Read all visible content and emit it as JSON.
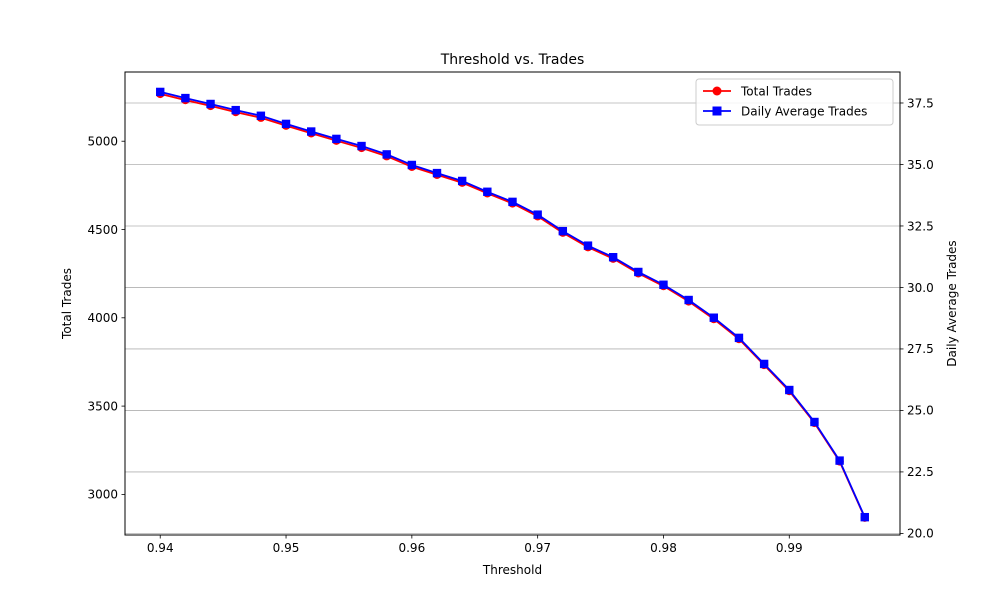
{
  "chart_data": {
    "type": "line",
    "title": "Threshold vs. Trades",
    "xlabel": "Threshold",
    "ylabel_left": "Total Trades",
    "ylabel_right": "Daily Average Trades",
    "xlim": [
      0.9372,
      0.9988
    ],
    "ylim_left": [
      2770,
      5392
    ],
    "ylim_right": [
      19.935,
      38.76
    ],
    "x_ticks": [
      0.94,
      0.95,
      0.96,
      0.97,
      0.98,
      0.99
    ],
    "x_tick_labels": [
      "0.94",
      "0.95",
      "0.96",
      "0.97",
      "0.98",
      "0.99"
    ],
    "y_left_ticks": [
      3000,
      3500,
      4000,
      4500,
      5000
    ],
    "y_left_tick_labels": [
      "3000",
      "3500",
      "4000",
      "4500",
      "5000"
    ],
    "y_right_ticks": [
      20.0,
      22.5,
      25.0,
      27.5,
      30.0,
      32.5,
      35.0,
      37.5
    ],
    "y_right_tick_labels": [
      "20.0",
      "22.5",
      "25.0",
      "27.5",
      "30.0",
      "32.5",
      "35.0",
      "37.5"
    ],
    "grid": "horizontal lines at right-axis ticks",
    "legend_position": "top-right",
    "x": [
      0.94,
      0.942,
      0.944,
      0.946,
      0.948,
      0.95,
      0.952,
      0.954,
      0.956,
      0.958,
      0.96,
      0.962,
      0.964,
      0.966,
      0.968,
      0.97,
      0.972,
      0.974,
      0.976,
      0.978,
      0.98,
      0.982,
      0.984,
      0.986,
      0.988,
      0.99,
      0.992,
      0.994,
      0.996
    ],
    "series": [
      {
        "name": "Total Trades",
        "axis": "left",
        "color": "#ff0000",
        "marker": "circle",
        "values": [
          5268,
          5233,
          5200,
          5165,
          5133,
          5088,
          5045,
          5003,
          4962,
          4915,
          4855,
          4810,
          4765,
          4705,
          4648,
          4575,
          4482,
          4400,
          4335,
          4252,
          4180,
          4093,
          3993,
          3880,
          3733,
          3585,
          3405,
          3187,
          2868
        ]
      },
      {
        "name": "Daily Average Trades",
        "axis": "right",
        "color": "#0000ff",
        "marker": "square",
        "values": [
          37.95,
          37.7,
          37.46,
          37.21,
          36.98,
          36.65,
          36.34,
          36.04,
          35.75,
          35.41,
          34.98,
          34.65,
          34.33,
          33.89,
          33.48,
          32.96,
          32.29,
          31.7,
          31.23,
          30.63,
          30.11,
          29.49,
          28.77,
          27.95,
          26.89,
          25.83,
          24.53,
          22.96,
          20.66
        ]
      }
    ]
  }
}
